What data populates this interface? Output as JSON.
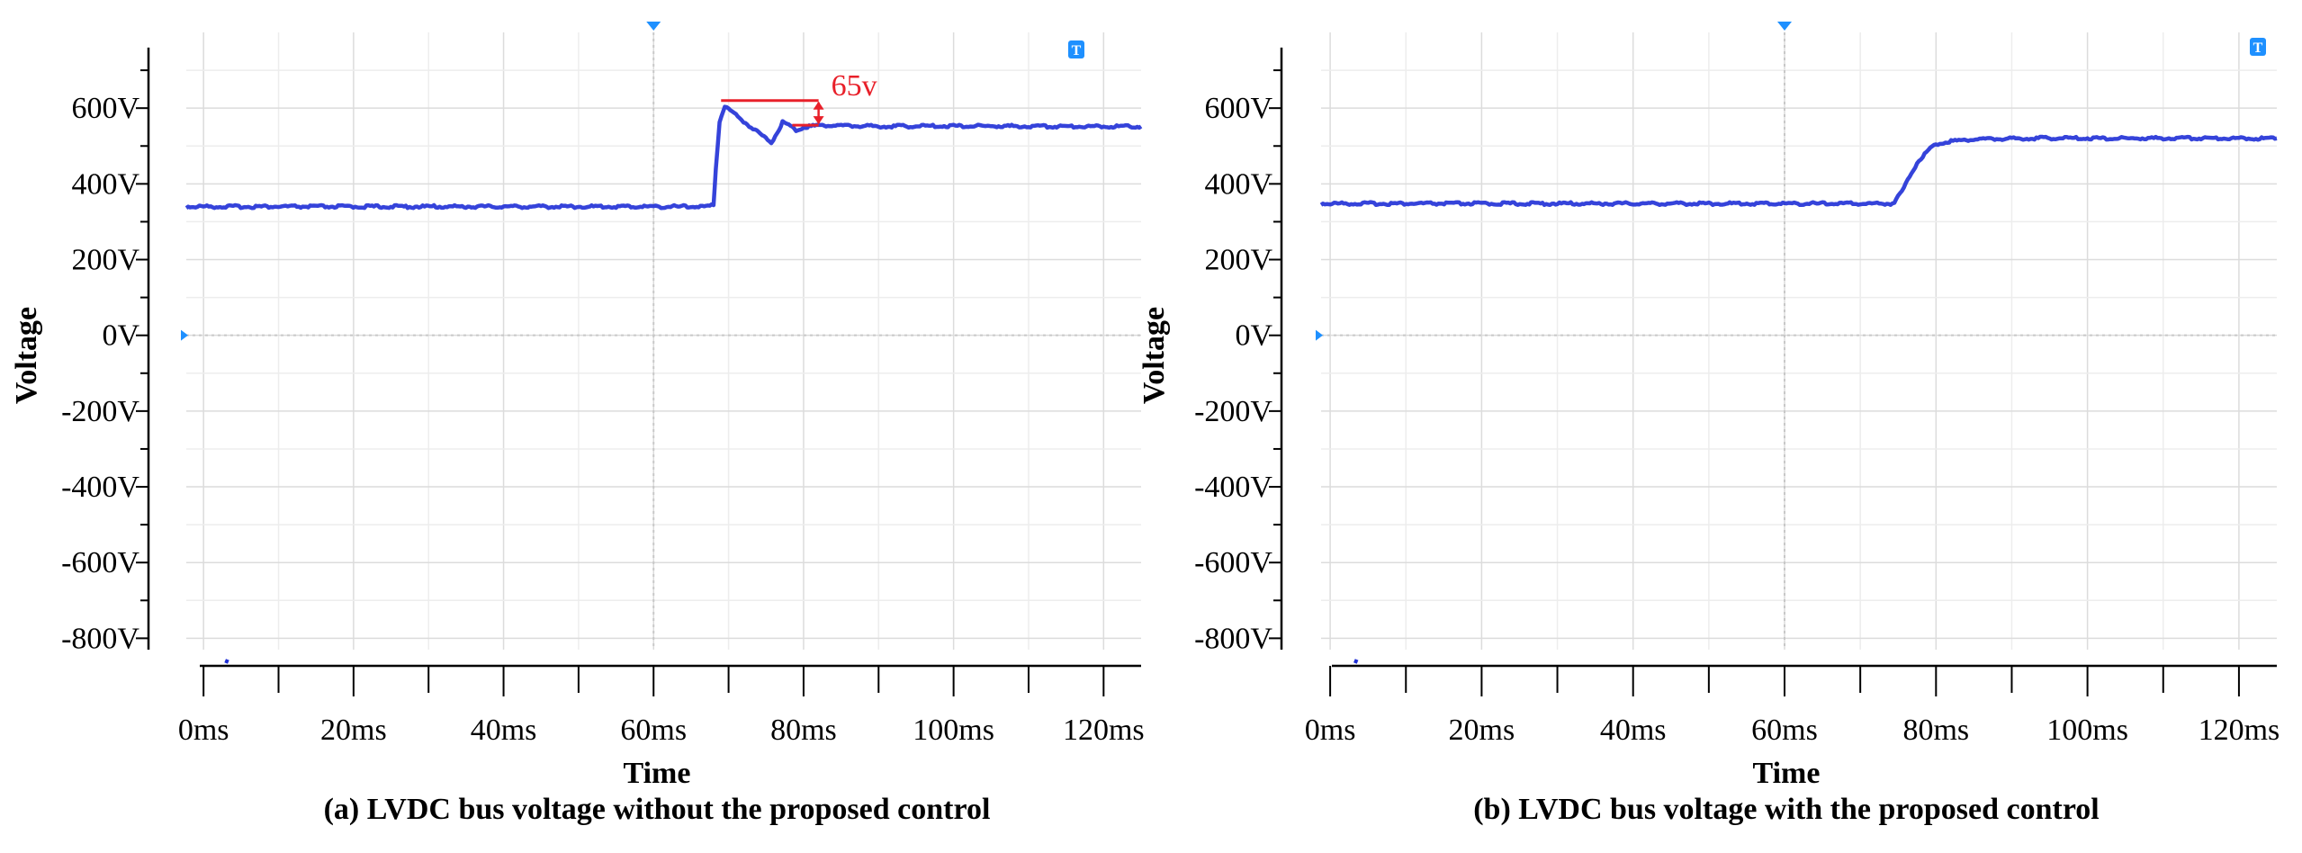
{
  "chart_data": [
    {
      "type": "line",
      "caption": "(a) LVDC bus voltage without the proposed control",
      "xlabel": "Time",
      "ylabel": "Voltage",
      "x_unit": "ms",
      "y_unit": "V",
      "xlim": [
        -2.3,
        125
      ],
      "ylim": [
        -830,
        800
      ],
      "x_ticks": [
        0,
        20,
        40,
        60,
        80,
        100,
        120
      ],
      "x_tick_labels": [
        "0ms",
        "20ms",
        "40ms",
        "60ms",
        "80ms",
        "100ms",
        "120ms"
      ],
      "y_ticks": [
        600,
        400,
        200,
        0,
        -200,
        -400,
        -600,
        -800
      ],
      "y_tick_labels": [
        "600V",
        "400V",
        "200V",
        "0V",
        "-200V",
        "-400V",
        "-600V",
        "-800V"
      ],
      "grid": true,
      "series": [
        {
          "name": "LVDC bus voltage",
          "color": "#1f2fd6",
          "x": [
            -2.3,
            67.5,
            68.0,
            68.3,
            68.8,
            69.5,
            70.5,
            72.0,
            74.0,
            75.7,
            76.5,
            77.2,
            78.0,
            79.0,
            80.0,
            82.0,
            90.0,
            100.0,
            110.0,
            125.0
          ],
          "y": [
            340,
            340,
            345,
            440,
            565,
            605,
            590,
            565,
            535,
            510,
            535,
            565,
            555,
            542,
            550,
            555,
            552,
            553,
            552,
            552
          ]
        }
      ],
      "annotation": {
        "label": "65v",
        "color": "#e8202a",
        "peak_value": 620,
        "steady_value": 555,
        "x_start": 69,
        "x_end": 82
      },
      "markers": {
        "trigger": "T",
        "marker_color": "#1e90ff"
      }
    },
    {
      "type": "line",
      "caption": "(b) LVDC bus voltage with the proposed control",
      "xlabel": "Time",
      "ylabel": "Voltage",
      "x_unit": "ms",
      "y_unit": "V",
      "xlim": [
        -1.2,
        125
      ],
      "ylim": [
        -830,
        800
      ],
      "x_ticks": [
        0,
        20,
        40,
        60,
        80,
        100,
        120
      ],
      "x_tick_labels": [
        "0ms",
        "20ms",
        "40ms",
        "60ms",
        "80ms",
        "100ms",
        "120ms"
      ],
      "y_ticks": [
        600,
        400,
        200,
        0,
        -200,
        -400,
        -600,
        -800
      ],
      "y_tick_labels": [
        "600V",
        "400V",
        "200V",
        "0V",
        "-200V",
        "-400V",
        "-600V",
        "-800V"
      ],
      "grid": true,
      "series": [
        {
          "name": "LVDC bus voltage",
          "color": "#1f2fd6",
          "x": [
            -1.2,
            74.0,
            74.5,
            75.5,
            76.5,
            77.5,
            78.5,
            79.5,
            80.5,
            82.0,
            85.0,
            95.0,
            105.0,
            115.0,
            125.0
          ],
          "y": [
            348,
            348,
            352,
            380,
            420,
            455,
            480,
            498,
            508,
            513,
            518,
            521,
            520,
            521,
            520
          ]
        }
      ],
      "markers": {
        "trigger": "T",
        "marker_color": "#1e90ff"
      }
    }
  ]
}
